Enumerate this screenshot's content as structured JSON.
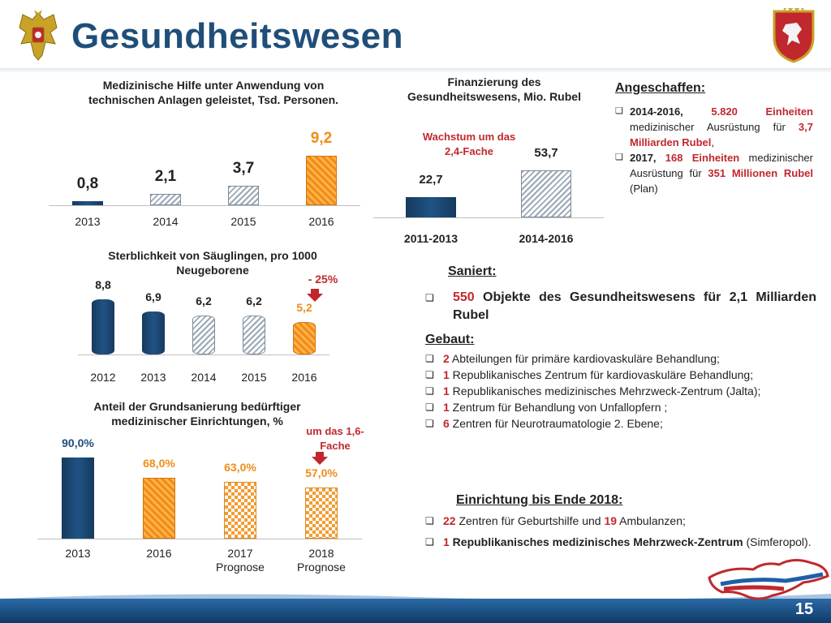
{
  "page": {
    "title": "Gesundheitswesen",
    "page_number": "15"
  },
  "chart1": {
    "title": "Medizinische Hilfe unter Anwendung von technischen Anlagen geleistet, Tsd. Personen.",
    "chart_data": {
      "type": "bar",
      "categories": [
        "2013",
        "2014",
        "2015",
        "2016"
      ],
      "values": [
        0.8,
        2.1,
        3.7,
        9.2
      ],
      "value_labels": [
        "0,8",
        "2,1",
        "3,7",
        "9,2"
      ],
      "ylim": [
        0,
        10
      ]
    }
  },
  "chart2": {
    "title": "Finanzierung des Gesundheitswesens, Mio. Rubel",
    "annotation": "Wachstum um das 2,4-Fache",
    "chart_data": {
      "type": "bar",
      "categories": [
        "2011-2013",
        "2014-2016"
      ],
      "values": [
        22.7,
        53.7
      ],
      "value_labels": [
        "22,7",
        "53,7"
      ],
      "ylim": [
        0,
        60
      ]
    }
  },
  "chart3": {
    "title": "Sterblichkeit von Säuglingen, pro 1000 Neugeborene",
    "annotation": "- 25%",
    "chart_data": {
      "type": "bar",
      "categories": [
        "2012",
        "2013",
        "2014",
        "2015",
        "2016"
      ],
      "values": [
        8.8,
        6.9,
        6.2,
        6.2,
        5.2
      ],
      "value_labels": [
        "8,8",
        "6,9",
        "6,2",
        "6,2",
        "5,2"
      ],
      "ylim": [
        0,
        10
      ]
    }
  },
  "chart4": {
    "title": "Anteil der Grundsanierung bedürftiger medizinischer Einrichtungen, %",
    "annotation": "um das 1,6-Fache",
    "chart_data": {
      "type": "bar",
      "categories": [
        "2013",
        "2016",
        "2017 Prognose",
        "2018 Prognose"
      ],
      "category_lines": [
        [
          "2013",
          ""
        ],
        [
          "2016",
          ""
        ],
        [
          "2017",
          "Prognose"
        ],
        [
          "2018",
          "Prognose"
        ]
      ],
      "values": [
        90.0,
        68.0,
        63.0,
        57.0
      ],
      "value_labels": [
        "90,0%",
        "68,0%",
        "63,0%",
        "57,0%"
      ],
      "ylim": [
        0,
        100
      ]
    }
  },
  "angeschafft": {
    "heading": "Angeschaffen:",
    "items": [
      {
        "a": "2014-2016, ",
        "b": "5.820 Einheiten",
        "c": " medizinischer Ausrüstung für ",
        "d": "3,7 Milliarden Rubel",
        "e": ","
      },
      {
        "a": "2017, ",
        "b": "168 Einheiten",
        "c": " medizinischer Ausrüstung für ",
        "d": "351 Millionen Rubel",
        "e": " (Plan)"
      }
    ]
  },
  "saniert": {
    "heading": "Saniert:",
    "item_num": "550",
    "item_text": " Objekte des Gesundheitswesens für 2,1 Milliarden Rubel"
  },
  "gebaut": {
    "heading": "Gebaut:",
    "items": [
      {
        "num": "2",
        "text": " Abteilungen für primäre kardiovaskuläre Behandlung;"
      },
      {
        "num": "1",
        "text": " Republikanisches Zentrum für kardiovaskuläre Behandlung;"
      },
      {
        "num": "1",
        "text": " Republikanisches medizinisches Mehrzweck-Zentrum (Jalta);"
      },
      {
        "num": "1",
        "text": " Zentrum für Behandlung von Unfallopfern ;"
      },
      {
        "num": "6",
        "text": " Zentren für Neurotraumatologie 2. Ebene;"
      }
    ]
  },
  "einrichtung": {
    "heading": "Einrichtung bis Ende 2018:",
    "item1": {
      "n1": "22",
      "t1": " Zentren für Geburtshilfe und ",
      "n2": "19",
      "t2": " Ambulanzen;"
    },
    "item2": {
      "n1": "1",
      "t1": " Republikanisches medizinisches Mehrzweck-Zentrum",
      "t2": " (Simferopol)."
    }
  },
  "colors": {
    "title": "#1f4e79",
    "accent_red": "#c0282d",
    "accent_orange": "#f08c1a",
    "bar_blue": "#1f5384"
  }
}
